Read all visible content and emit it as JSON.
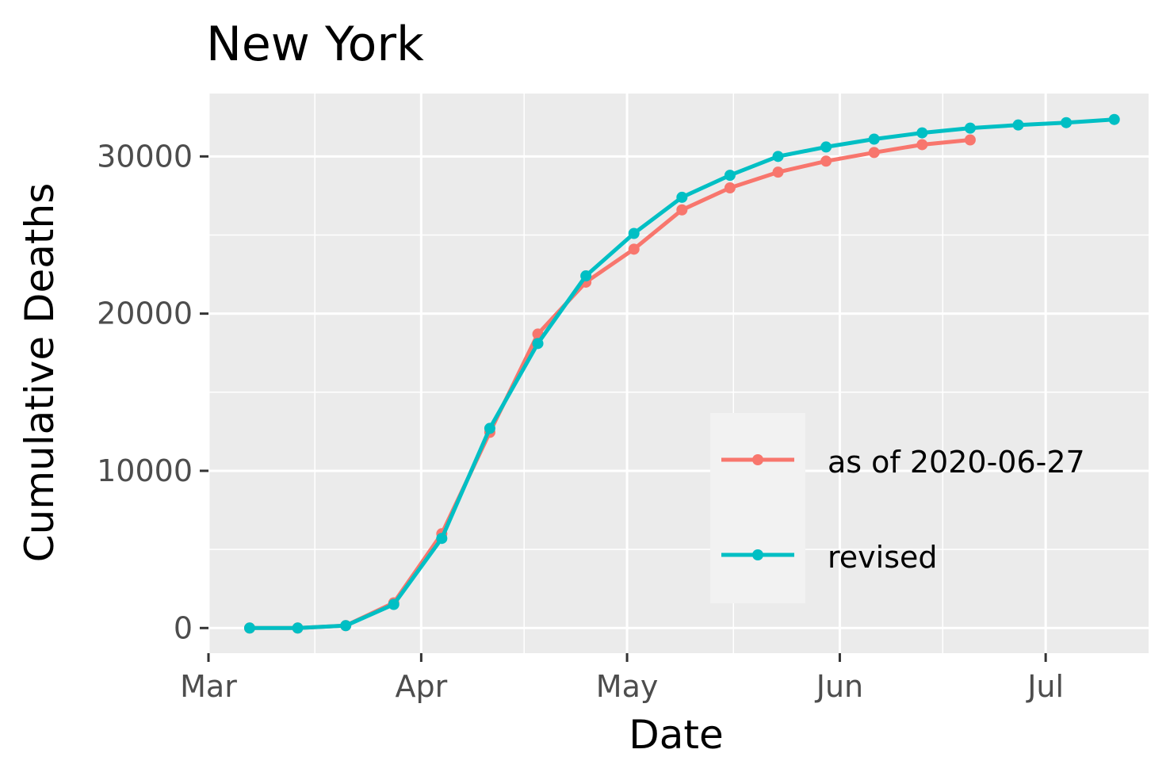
{
  "chart_data": {
    "type": "line",
    "title": "New York",
    "xlabel": "Date",
    "ylabel": "Cumulative Deaths",
    "x_axis": {
      "type": "date",
      "range": [
        "2020-03-01",
        "2020-07-16"
      ],
      "ticks": [
        {
          "date": "2020-03-01",
          "label": "Mar"
        },
        {
          "date": "2020-04-01",
          "label": "Apr"
        },
        {
          "date": "2020-05-01",
          "label": "May"
        },
        {
          "date": "2020-06-01",
          "label": "Jun"
        },
        {
          "date": "2020-07-01",
          "label": "Jul"
        }
      ]
    },
    "y_axis": {
      "range": [
        -1600,
        34000
      ],
      "ticks": [
        0,
        10000,
        20000,
        30000
      ],
      "tick_labels": [
        "0",
        "10000",
        "20000",
        "30000"
      ]
    },
    "grid": true,
    "legend_position": "bottom-right",
    "series": [
      {
        "name": "as of 2020-06-27",
        "color": "#F8766D",
        "points": [
          {
            "x": "2020-03-07",
            "y": 0
          },
          {
            "x": "2020-03-14",
            "y": 0
          },
          {
            "x": "2020-03-21",
            "y": 150
          },
          {
            "x": "2020-03-28",
            "y": 1600
          },
          {
            "x": "2020-04-04",
            "y": 6000
          },
          {
            "x": "2020-04-11",
            "y": 12450
          },
          {
            "x": "2020-04-18",
            "y": 18700
          },
          {
            "x": "2020-04-25",
            "y": 22000
          },
          {
            "x": "2020-05-02",
            "y": 24100
          },
          {
            "x": "2020-05-09",
            "y": 26600
          },
          {
            "x": "2020-05-16",
            "y": 28000
          },
          {
            "x": "2020-05-23",
            "y": 29000
          },
          {
            "x": "2020-05-30",
            "y": 29700
          },
          {
            "x": "2020-06-06",
            "y": 30250
          },
          {
            "x": "2020-06-13",
            "y": 30750
          },
          {
            "x": "2020-06-20",
            "y": 31050
          }
        ]
      },
      {
        "name": "revised",
        "color": "#00BFC4",
        "points": [
          {
            "x": "2020-03-07",
            "y": 0
          },
          {
            "x": "2020-03-14",
            "y": 0
          },
          {
            "x": "2020-03-21",
            "y": 150
          },
          {
            "x": "2020-03-28",
            "y": 1500
          },
          {
            "x": "2020-04-04",
            "y": 5700
          },
          {
            "x": "2020-04-11",
            "y": 12700
          },
          {
            "x": "2020-04-18",
            "y": 18100
          },
          {
            "x": "2020-04-25",
            "y": 22400
          },
          {
            "x": "2020-05-02",
            "y": 25100
          },
          {
            "x": "2020-05-09",
            "y": 27400
          },
          {
            "x": "2020-05-16",
            "y": 28800
          },
          {
            "x": "2020-05-23",
            "y": 30000
          },
          {
            "x": "2020-05-30",
            "y": 30600
          },
          {
            "x": "2020-06-06",
            "y": 31100
          },
          {
            "x": "2020-06-13",
            "y": 31500
          },
          {
            "x": "2020-06-20",
            "y": 31800
          },
          {
            "x": "2020-06-27",
            "y": 32000
          },
          {
            "x": "2020-07-04",
            "y": 32150
          },
          {
            "x": "2020-07-11",
            "y": 32350
          }
        ]
      }
    ]
  }
}
